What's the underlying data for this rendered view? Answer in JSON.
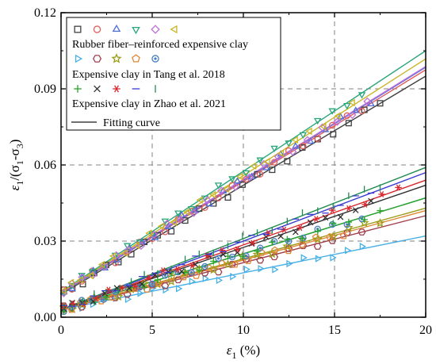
{
  "chart_data": {
    "type": "scatter",
    "xlabel": {
      "symbol": "ε",
      "sub": "1",
      "unit": " (%)"
    },
    "ylabel": {
      "pre": "ε",
      "sub1": "1",
      "mid": "/(σ",
      "sub2": "1",
      "dash": "-σ",
      "sub3": "3",
      "post": ")"
    },
    "xlim": [
      0,
      20
    ],
    "ylim": [
      0,
      0.12
    ],
    "xticks": [
      "0",
      "5",
      "10",
      "15",
      "20"
    ],
    "yticks": [
      "0.00",
      "0.03",
      "0.06",
      "0.09",
      "0.12"
    ],
    "grid": "dashed",
    "legend": {
      "placement": "top-left",
      "group_labels": [
        "Rubber fiber–reinforced expensive clay",
        "Expensive clay in Tang et al. 2018",
        "Expensive clay in Zhao et al. 2021",
        "Fitting curve"
      ]
    },
    "series": [
      {
        "marker": "square",
        "color": "#404040",
        "group": 0,
        "a": 0.009,
        "b": 0.0043,
        "xmax": 17.5
      },
      {
        "marker": "circle",
        "color": "#e06060",
        "group": 0,
        "a": 0.0095,
        "b": 0.0044,
        "xmax": 16.5
      },
      {
        "marker": "triangle-up",
        "color": "#4c6ed8",
        "group": 0,
        "a": 0.0095,
        "b": 0.00445,
        "xmax": 17.0
      },
      {
        "marker": "triangle-down",
        "color": "#2aa67a",
        "group": 0,
        "a": 0.01,
        "b": 0.00475,
        "xmax": 16.5
      },
      {
        "marker": "diamond",
        "color": "#c070d8",
        "group": 0,
        "a": 0.0098,
        "b": 0.00445,
        "xmax": 16.8
      },
      {
        "marker": "triangle-left",
        "color": "#c9b628",
        "group": 0,
        "a": 0.0098,
        "b": 0.0046,
        "xmax": 16.0
      },
      {
        "marker": "triangle-right",
        "color": "#49b0e6",
        "group": 1,
        "a": 0.003,
        "b": 0.00145,
        "xmax": 16.5
      },
      {
        "marker": "hexagon",
        "color": "#a0404e",
        "group": 1,
        "a": 0.003,
        "b": 0.00185,
        "xmax": 16.5
      },
      {
        "marker": "star",
        "color": "#9c9c18",
        "group": 1,
        "a": 0.003,
        "b": 0.002,
        "xmax": 17.5
      },
      {
        "marker": "pentagon",
        "color": "#e08838",
        "group": 1,
        "a": 0.003,
        "b": 0.00195,
        "xmax": 15.5
      },
      {
        "marker": "circle-dot",
        "color": "#4a7ec4",
        "group": 1,
        "a": 0.003,
        "b": 0.0022,
        "xmax": 16.5
      },
      {
        "marker": "plus",
        "color": "#26a626",
        "group": 2,
        "a": 0.003,
        "b": 0.0022,
        "xmax": 17.5
      },
      {
        "marker": "cross",
        "color": "#303030",
        "group": 2,
        "a": 0.003,
        "b": 0.00245,
        "xmax": 17.0
      },
      {
        "marker": "asterisk",
        "color": "#d8282e",
        "group": 2,
        "a": 0.003,
        "b": 0.00255,
        "xmax": 18.5
      },
      {
        "marker": "dash",
        "color": "#3a3ad0",
        "group": 2,
        "a": 0.003,
        "b": 0.0027,
        "xmax": 17.0
      },
      {
        "marker": "vline",
        "color": "#208a50",
        "group": 2,
        "a": 0.003,
        "b": 0.0028,
        "xmax": 17.5
      }
    ],
    "legend_row_group": [
      0,
      1,
      2
    ]
  }
}
